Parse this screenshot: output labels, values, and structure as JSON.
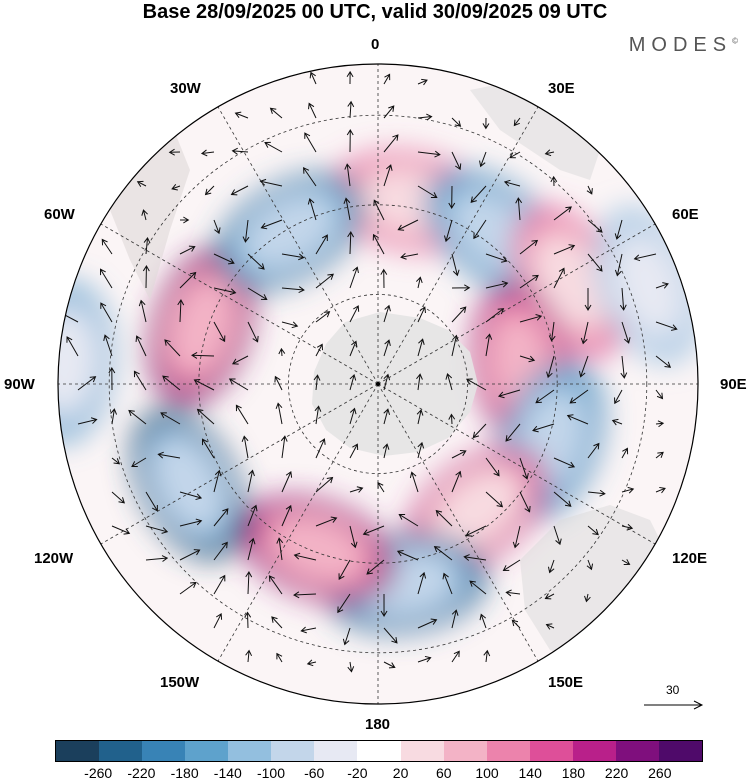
{
  "title": "Base 28/09/2025 00 UTC, valid 30/09/2025 09 UTC",
  "brand": "MODES",
  "brand_mark": "©",
  "longitude_labels": {
    "n": "0",
    "s": "180",
    "e": "90E",
    "w": "90W",
    "ne": "30E",
    "nw": "30W",
    "ene": "60E",
    "wnw": "60W",
    "ese": "120E",
    "wsw": "120W",
    "se": "150E",
    "sw": "150W"
  },
  "wind_reference": "30",
  "colorbar": {
    "ticks": [
      "-260",
      "-220",
      "-180",
      "-140",
      "-100",
      "-60",
      "-20",
      "20",
      "60",
      "100",
      "140",
      "180",
      "220",
      "260"
    ],
    "colors": [
      "#1b3f5c",
      "#21618c",
      "#3883b6",
      "#5ea2cc",
      "#93bfdf",
      "#c3d6ea",
      "#e7e9f3",
      "#ffffff",
      "#f8dbe1",
      "#f3b3c6",
      "#ec83ac",
      "#de4f99",
      "#b9208a",
      "#7f0f7d",
      "#4f0a6a"
    ]
  },
  "anomalies": [
    {
      "lon": 10,
      "r": 0.58,
      "value": 150
    },
    {
      "lon": 38,
      "r": 0.6,
      "value": -200
    },
    {
      "lon": 62,
      "r": 0.68,
      "value": 170
    },
    {
      "lon": 70,
      "r": 0.9,
      "value": -120
    },
    {
      "lon": 82,
      "r": 0.45,
      "value": 230
    },
    {
      "lon": 108,
      "r": 0.57,
      "value": -200
    },
    {
      "lon": 142,
      "r": 0.5,
      "value": 200
    },
    {
      "lon": 172,
      "r": 0.63,
      "value": -240
    },
    {
      "lon": -160,
      "r": 0.55,
      "value": 250
    },
    {
      "lon": -118,
      "r": 0.67,
      "value": -270
    },
    {
      "lon": -72,
      "r": 0.58,
      "value": 270
    },
    {
      "lon": -30,
      "r": 0.55,
      "value": -220
    },
    {
      "lon": -86,
      "r": 0.98,
      "value": -150
    }
  ]
}
